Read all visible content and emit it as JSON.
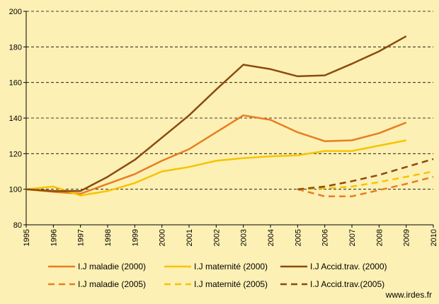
{
  "chart_data": {
    "type": "line",
    "x": [
      1995,
      1996,
      1997,
      1998,
      1999,
      2000,
      2001,
      2002,
      2003,
      2004,
      2005,
      2006,
      2007,
      2008,
      2009,
      2010
    ],
    "x_tick_labels": [
      "1995",
      "1996",
      "1997",
      "1998",
      "1999",
      "2000",
      "2001",
      "2002",
      "2003",
      "2004",
      "2005",
      "2006",
      "2007",
      "2008",
      "2009",
      "2010"
    ],
    "ylim": [
      80,
      200
    ],
    "y_ticks": [
      80,
      100,
      120,
      140,
      160,
      180,
      200
    ],
    "grid": "horizontal dashed",
    "legend_position": "bottom",
    "series": [
      {
        "name": "I.J maladie (2000)",
        "color": "#e67e22",
        "dash": "solid",
        "points": [
          [
            1995,
            100
          ],
          [
            1996,
            98.5
          ],
          [
            1997,
            97.5
          ],
          [
            1998,
            103
          ],
          [
            1999,
            108.5
          ],
          [
            2000,
            116
          ],
          [
            2001,
            122.5
          ],
          [
            2002,
            132
          ],
          [
            2003,
            141.5
          ],
          [
            2004,
            139
          ],
          [
            2005,
            132
          ],
          [
            2006,
            127
          ],
          [
            2007,
            127.5
          ],
          [
            2008,
            131.5
          ],
          [
            2009,
            137.5
          ]
        ]
      },
      {
        "name": "I.J maternité (2000)",
        "color": "#f5c400",
        "dash": "solid",
        "points": [
          [
            1995,
            100
          ],
          [
            1996,
            101.5
          ],
          [
            1997,
            96.5
          ],
          [
            1998,
            99
          ],
          [
            1999,
            103.5
          ],
          [
            2000,
            110
          ],
          [
            2001,
            112.5
          ],
          [
            2002,
            116
          ],
          [
            2003,
            117.5
          ],
          [
            2004,
            118.5
          ],
          [
            2005,
            119
          ],
          [
            2006,
            121.5
          ],
          [
            2007,
            121.5
          ],
          [
            2008,
            124.5
          ],
          [
            2009,
            127.5
          ]
        ]
      },
      {
        "name": "I.J Accid.trav. (2000)",
        "color": "#8b4b10",
        "dash": "solid",
        "points": [
          [
            1995,
            100
          ],
          [
            1996,
            99
          ],
          [
            1997,
            99
          ],
          [
            1998,
            107
          ],
          [
            1999,
            116.5
          ],
          [
            2000,
            129
          ],
          [
            2001,
            141.5
          ],
          [
            2002,
            156
          ],
          [
            2003,
            170
          ],
          [
            2004,
            167.5
          ],
          [
            2005,
            163.5
          ],
          [
            2006,
            164
          ],
          [
            2007,
            170.5
          ],
          [
            2008,
            177.5
          ],
          [
            2009,
            186
          ]
        ]
      },
      {
        "name": "I.J maladie (2005)",
        "color": "#e67e22",
        "dash": "dashed",
        "points": [
          [
            2005,
            100
          ],
          [
            2006,
            96
          ],
          [
            2007,
            96
          ],
          [
            2008,
            99.5
          ],
          [
            2009,
            103
          ],
          [
            2010,
            107
          ]
        ]
      },
      {
        "name": "I.J maternité (2005)",
        "color": "#f5c400",
        "dash": "dashed",
        "points": [
          [
            2005,
            100
          ],
          [
            2006,
            100.5
          ],
          [
            2007,
            101.5
          ],
          [
            2008,
            104
          ],
          [
            2009,
            107
          ],
          [
            2010,
            110
          ]
        ]
      },
      {
        "name": "I.J Accid.trav.(2005)",
        "color": "#8b4b10",
        "dash": "dashed",
        "points": [
          [
            2005,
            100
          ],
          [
            2006,
            101.5
          ],
          [
            2007,
            104.5
          ],
          [
            2008,
            108
          ],
          [
            2009,
            112.5
          ],
          [
            2010,
            117
          ]
        ]
      }
    ]
  },
  "credit": "www.irdes.fr"
}
